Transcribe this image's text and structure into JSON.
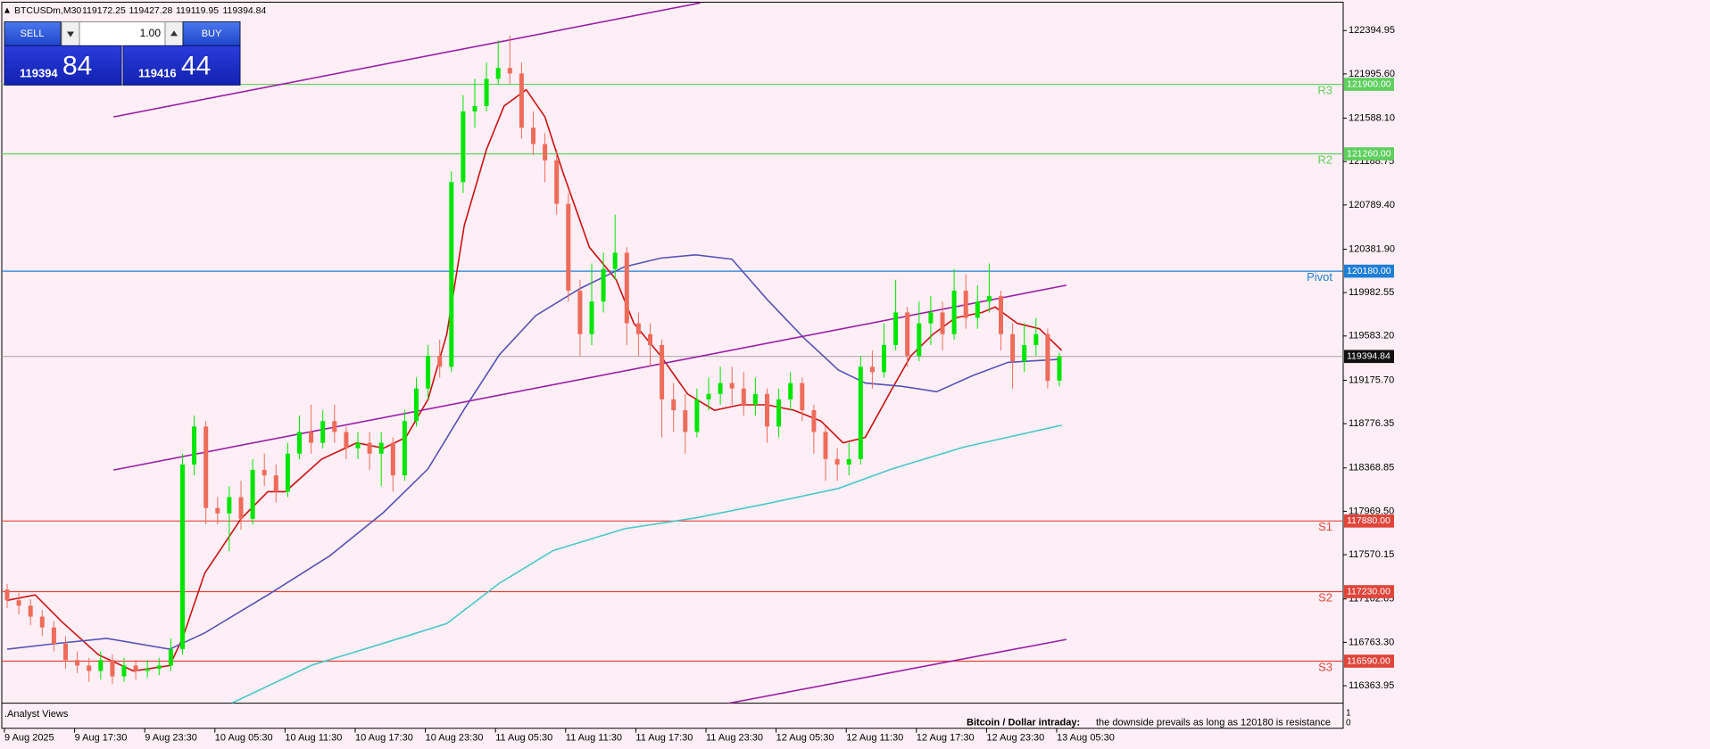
{
  "header": {
    "symbol": "BTCUSDm,M30"
  },
  "trade_panel": {
    "sell": "SELL",
    "buy": "BUY",
    "volume": "1.00",
    "sell_price": "119394",
    "sell_pips": "84",
    "buy_price": "119416",
    "buy_pips": "44"
  },
  "chart_data": {
    "type": "candlestick",
    "ylim": [
      116203,
      122676
    ],
    "up_color": "#00e600",
    "down_color": "#ef6c5a",
    "open": [
      117250,
      117150,
      117100,
      117000,
      116900,
      116750,
      116600,
      116550,
      116500,
      116600,
      116450,
      116550,
      116500,
      116520,
      116550,
      116700,
      118400,
      118750,
      118000,
      117950,
      118100,
      117900,
      118350,
      118300,
      118150,
      118500,
      118700,
      118600,
      118800,
      118700,
      118550,
      118600,
      118500,
      118600,
      118300,
      118800,
      119100,
      119400,
      119300,
      121000,
      121650,
      121700,
      121950,
      122050,
      122000,
      121500,
      121350,
      121200,
      120800,
      120000,
      119600,
      119900,
      120200,
      120350,
      119700,
      119600,
      119500,
      119000,
      118900,
      118700,
      119000,
      119050,
      119150,
      119100,
      118950,
      119050,
      118750,
      119000,
      119150,
      118900,
      118700,
      118450,
      118400,
      118450,
      119300,
      119250,
      119500,
      119800,
      119400,
      119700,
      119800,
      119600,
      120000,
      119750,
      119900,
      119950,
      119600,
      119350,
      119500,
      119600,
      119172.25
    ],
    "high": [
      117300,
      117220,
      117160,
      117060,
      116960,
      116820,
      116680,
      116620,
      116680,
      116650,
      116620,
      116600,
      116600,
      116620,
      116800,
      118500,
      118850,
      118800,
      118100,
      118200,
      118250,
      118450,
      118500,
      118400,
      118600,
      118850,
      118950,
      118900,
      118950,
      118750,
      118700,
      118700,
      118700,
      118650,
      118900,
      119200,
      119500,
      119550,
      121100,
      121800,
      121950,
      122100,
      122300,
      122350,
      122100,
      121650,
      121450,
      121300,
      120900,
      120100,
      120250,
      120350,
      120700,
      120400,
      119800,
      119700,
      119550,
      119150,
      119050,
      119100,
      119200,
      119300,
      119300,
      119250,
      119200,
      119100,
      119100,
      119250,
      119200,
      118950,
      118750,
      118550,
      118600,
      119400,
      119450,
      119700,
      120100,
      119850,
      119900,
      119950,
      119900,
      120200,
      120150,
      120050,
      120250,
      120000,
      119700,
      119700,
      119750,
      119650,
      119427.28
    ],
    "low": [
      117080,
      117020,
      116920,
      116820,
      116680,
      116520,
      116480,
      116400,
      116420,
      116380,
      116400,
      116420,
      116440,
      116460,
      116500,
      116650,
      118300,
      117850,
      117850,
      117600,
      117800,
      117850,
      118200,
      118050,
      118100,
      118450,
      118500,
      118550,
      118600,
      118450,
      118450,
      118350,
      118200,
      118150,
      118250,
      118750,
      119000,
      119200,
      119250,
      120900,
      121500,
      121650,
      121900,
      121900,
      121400,
      121250,
      121000,
      120700,
      119900,
      119400,
      119500,
      119800,
      120100,
      119500,
      119400,
      119300,
      118650,
      118700,
      118500,
      118650,
      118900,
      118950,
      118950,
      118850,
      118850,
      118600,
      118650,
      118900,
      118800,
      118500,
      118250,
      118250,
      118300,
      118400,
      119100,
      119200,
      119450,
      119300,
      119350,
      119500,
      119450,
      119550,
      119650,
      119650,
      119800,
      119450,
      119100,
      119250,
      119400,
      119100,
      119119.95
    ],
    "close": [
      117150,
      117100,
      117000,
      116900,
      116750,
      116600,
      116550,
      116500,
      116600,
      116450,
      116550,
      116500,
      116520,
      116550,
      116700,
      118400,
      118750,
      118000,
      117950,
      118100,
      117900,
      118350,
      118300,
      118150,
      118500,
      118700,
      118600,
      118800,
      118700,
      118550,
      118600,
      118500,
      118600,
      118300,
      118800,
      119100,
      119400,
      119300,
      121000,
      121650,
      121700,
      121950,
      122050,
      122000,
      121500,
      121350,
      121200,
      120800,
      120000,
      119600,
      119900,
      120200,
      120350,
      119700,
      119600,
      119500,
      119000,
      118900,
      118700,
      119000,
      119050,
      119150,
      119100,
      118950,
      119050,
      118750,
      119000,
      119150,
      118900,
      118700,
      118450,
      118400,
      118450,
      119300,
      119250,
      119500,
      119800,
      119400,
      119700,
      119800,
      119600,
      120000,
      119750,
      119900,
      119950,
      119600,
      119350,
      119500,
      119600,
      119170,
      119394.84
    ],
    "x_labels": [
      "9 Aug 2025",
      "9 Aug 17:30",
      "9 Aug 23:30",
      "10 Aug 05:30",
      "10 Aug 11:30",
      "10 Aug 17:30",
      "10 Aug 23:30",
      "11 Aug 05:30",
      "11 Aug 11:30",
      "11 Aug 17:30",
      "11 Aug 23:30",
      "12 Aug 05:30",
      "12 Aug 11:30",
      "12 Aug 17:30",
      "12 Aug 23:30",
      "13 Aug 05:30"
    ],
    "yticks": [
      {
        "value": 122394.95,
        "label": "122394.95"
      },
      {
        "value": 121995.6,
        "label": "121995.60"
      },
      {
        "value": 121588.1,
        "label": "121588.10"
      },
      {
        "value": 121188.75,
        "label": "121188.75"
      },
      {
        "value": 120789.4,
        "label": "120789.40"
      },
      {
        "value": 120381.9,
        "label": "120381.90"
      },
      {
        "value": 119982.55,
        "label": "119982.55"
      },
      {
        "value": 119583.2,
        "label": "119583.20"
      },
      {
        "value": 119175.7,
        "label": "119175.70"
      },
      {
        "value": 118776.35,
        "label": "118776.35"
      },
      {
        "value": 118368.85,
        "label": "118368.85"
      },
      {
        "value": 117969.5,
        "label": "117969.50"
      },
      {
        "value": 117570.15,
        "label": "117570.15"
      },
      {
        "value": 117162.65,
        "label": "117162.65"
      },
      {
        "value": 116763.3,
        "label": "116763.30"
      },
      {
        "value": 116363.95,
        "label": "116363.95"
      }
    ],
    "levels": [
      {
        "name": "R3",
        "value": 121900,
        "label": "121900.00",
        "color": "#5fcf5f"
      },
      {
        "name": "R2",
        "value": 121260,
        "label": "121260.00",
        "color": "#5fcf5f"
      },
      {
        "name": "Pivot",
        "value": 120180,
        "label": "120180.00",
        "color": "#1e7ed6"
      },
      {
        "name": "S1",
        "value": 117880,
        "label": "117880.00",
        "color": "#e0453a"
      },
      {
        "name": "S2",
        "value": 117230,
        "label": "117230.00",
        "color": "#e0453a"
      },
      {
        "name": "S3",
        "value": 116590,
        "label": "116590.00",
        "color": "#e0453a"
      }
    ],
    "overlays": [
      {
        "color": "#cc1111",
        "x": [
          0,
          2.4,
          4.7,
          7.8,
          10.8,
          13.9,
          15,
          16.9,
          20,
          22.3,
          23.8,
          26.9,
          29.9,
          32.2,
          34.1,
          36,
          37.6,
          39.1,
          41,
          42.5,
          44.4,
          46,
          47.5,
          49.8,
          52.1,
          53.6,
          55.9,
          58.2,
          60.5,
          62.7,
          65,
          67.3,
          69.6,
          71.5,
          73.4,
          75.7,
          77.3,
          79.2,
          81.1,
          83.4,
          84.5,
          86.4,
          88.3,
          90.2
        ],
        "values": [
          117150,
          117200,
          116950,
          116650,
          116500,
          116550,
          116800,
          117400,
          117900,
          118150,
          118150,
          118450,
          118600,
          118550,
          118650,
          119000,
          119600,
          120600,
          121300,
          121700,
          121850,
          121600,
          121100,
          120400,
          120100,
          119700,
          119400,
          119050,
          118900,
          118950,
          118950,
          118900,
          118800,
          118600,
          118650,
          119100,
          119400,
          119600,
          119750,
          119800,
          119850,
          119700,
          119650,
          119450
        ]
      },
      {
        "color": "#5552b8",
        "x": [
          0,
          4,
          8.5,
          13.9,
          16.9,
          22.3,
          27.6,
          32.2,
          36,
          39.1,
          42.1,
          45.2,
          49,
          52.8,
          55.9,
          58.9,
          62,
          65,
          68.1,
          71.1,
          73.4,
          76.5,
          79.5,
          82.6,
          85.6,
          90.2
        ],
        "values": [
          116700,
          116750,
          116800,
          116700,
          116850,
          117200,
          117560,
          117960,
          118360,
          118910,
          119410,
          119770,
          120020,
          120220,
          120300,
          120330,
          120290,
          119920,
          119570,
          119270,
          119150,
          119120,
          119070,
          119220,
          119340,
          119370
        ]
      },
      {
        "color": "#48c8c8",
        "x": [
          19.2,
          26.1,
          33.7,
          37.6,
          42.1,
          46.7,
          52.8,
          58.9,
          65,
          71.1,
          75.7,
          81.8,
          90.2
        ],
        "values": [
          116203,
          116555,
          116805,
          116936,
          117307,
          117608,
          117809,
          117909,
          118040,
          118180,
          118360,
          118560,
          118762
        ]
      },
      {
        "color": "#9a1fa6",
        "x": [
          9.1,
          59.3
        ],
        "values": [
          121600,
          122650
        ]
      },
      {
        "color": "#9a1fa6",
        "x": [
          9.1,
          90.6
        ],
        "values": [
          118350,
          120050
        ]
      },
      {
        "color": "#9a1fa6",
        "x": [
          61.6,
          90.6
        ],
        "values": [
          116200,
          116790
        ]
      }
    ]
  },
  "analyst_views": {
    "title": ".Analyst Views",
    "headline": "Bitcoin / Dollar intraday:",
    "text": "the downside prevails as long as 120180 is resistance",
    "scale": [
      1,
      0
    ]
  }
}
